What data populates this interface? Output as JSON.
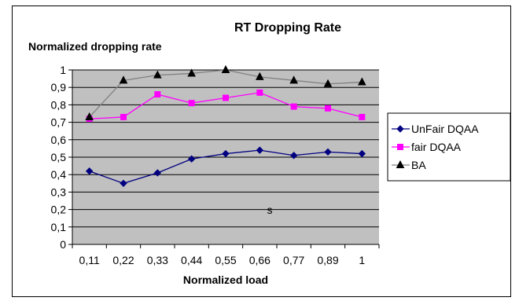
{
  "chart_data": {
    "type": "line",
    "title": "RT Dropping Rate",
    "ylabel": "Normalized dropping rate",
    "xlabel": "Normalized load",
    "categories": [
      "0,11",
      "0,22",
      "0,33",
      "0,44",
      "0,55",
      "0,66",
      "0,77",
      "0,89",
      "1"
    ],
    "ylim": [
      0,
      1
    ],
    "yticks": [
      "0",
      "0,1",
      "0,2",
      "0,3",
      "0,4",
      "0,5",
      "0,6",
      "0,7",
      "0,8",
      "0,9",
      "1"
    ],
    "grid": true,
    "legend": "right",
    "annotation": "s",
    "series": [
      {
        "name": "UnFair DQAA",
        "color": "#000080",
        "marker": "diamond",
        "values": [
          0.42,
          0.35,
          0.41,
          0.49,
          0.52,
          0.54,
          0.51,
          0.53,
          0.52
        ]
      },
      {
        "name": "fair DQAA",
        "color": "#FF00FF",
        "marker": "square",
        "values": [
          0.72,
          0.73,
          0.86,
          0.81,
          0.84,
          0.87,
          0.79,
          0.78,
          0.73
        ]
      },
      {
        "name": "BA",
        "color": "#000000",
        "line_color": "#808080",
        "marker": "triangle",
        "values": [
          0.73,
          0.94,
          0.97,
          0.98,
          1.0,
          0.96,
          0.94,
          0.92,
          0.93
        ]
      }
    ]
  },
  "colors": {
    "plot_background": "#C0C0C0",
    "gridline": "#000000"
  }
}
